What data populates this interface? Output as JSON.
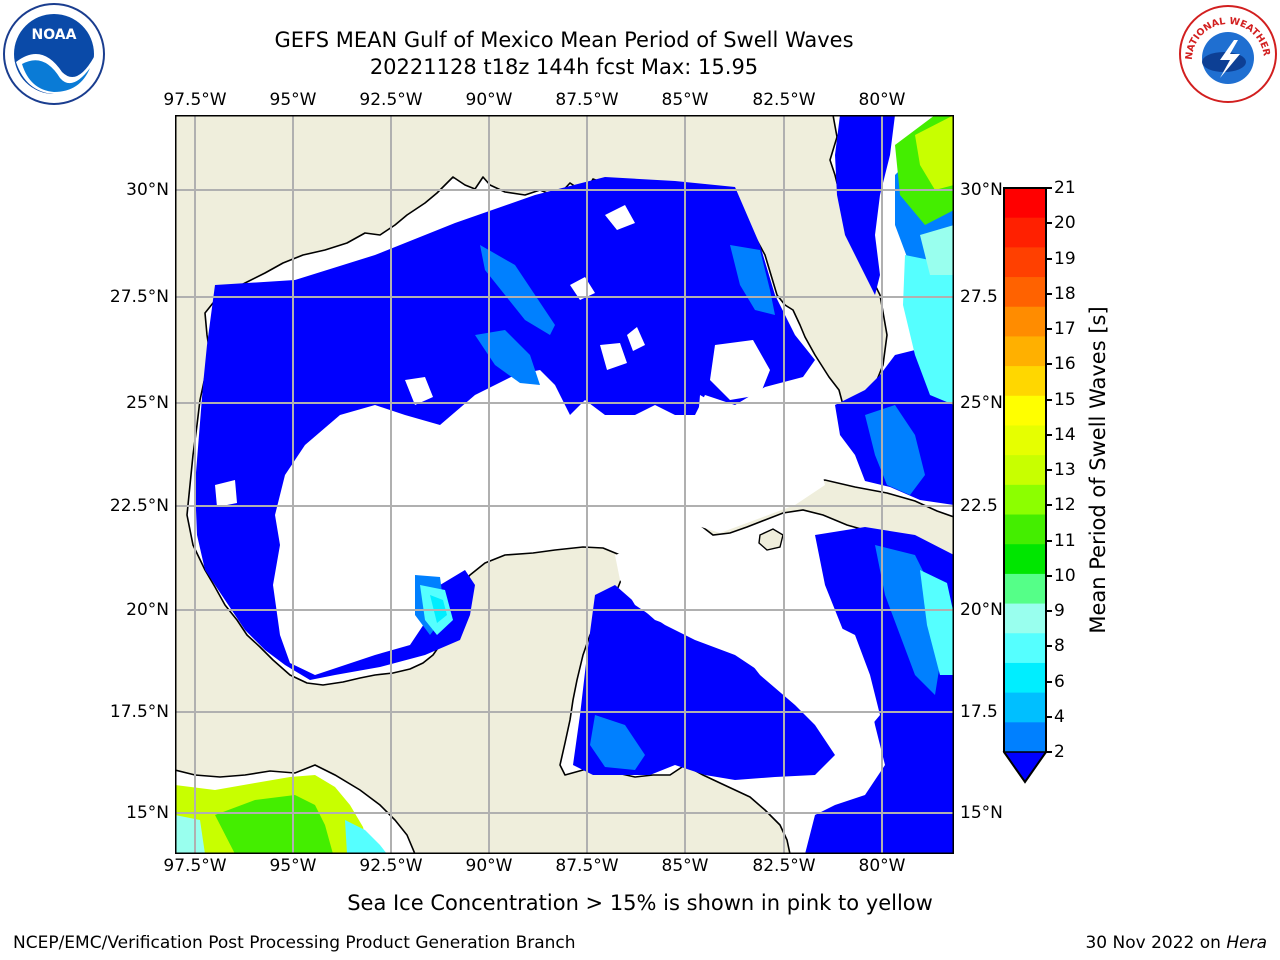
{
  "header": {
    "title_line1": "GEFS MEAN Gulf of Mexico Mean Period of Swell Waves",
    "title_line2": "20221128 t18z 144h fcst   Max: 15.95"
  },
  "axes": {
    "lon_ticks": [
      "97.5°W",
      "95°W",
      "92.5°W",
      "90°W",
      "87.5°W",
      "85°W",
      "82.5°W",
      "80°W"
    ],
    "lat_ticks_left": [
      "30°N",
      "27.5°N",
      "25°N",
      "22.5°N",
      "20°N",
      "17.5°N",
      "15°N"
    ],
    "lat_ticks_right": [
      "30°N",
      "27.5",
      "25°N",
      "22.5",
      "20°N",
      "17.5",
      "15°N"
    ]
  },
  "colorbar": {
    "label": "Mean Period of Swell Waves [s]",
    "ticks": [
      "21",
      "20",
      "19",
      "18",
      "17",
      "16",
      "15",
      "14",
      "13",
      "12",
      "11",
      "10",
      "9",
      "8",
      "6",
      "4",
      "2"
    ],
    "colors": [
      "#ff0000",
      "#ff2000",
      "#ff4000",
      "#ff6200",
      "#ff8c00",
      "#ffb000",
      "#ffd700",
      "#ffff00",
      "#e6ff00",
      "#c8ff00",
      "#8cff00",
      "#44ee00",
      "#00e600",
      "#55ff88",
      "#99ffee",
      "#55ffff",
      "#00eeff",
      "#00bfff",
      "#0080ff"
    ],
    "extend_color": "#0000ff"
  },
  "colors": {
    "land": "#efeedc",
    "swell_low": "#0000ff",
    "swell_mid": "#0080ff",
    "grid": "#b0b0b0"
  },
  "note": "Sea Ice Concentration > 15% is shown in pink to yellow",
  "footer": {
    "left": "NCEP/EMC/Verification Post Processing Product Generation Branch",
    "right_date": "30 Nov 2022 on ",
    "right_machine": "Hera"
  },
  "logos": {
    "noaa_text": "NOAA",
    "nws_text": "NATIONAL WEATHER SERVICE"
  }
}
